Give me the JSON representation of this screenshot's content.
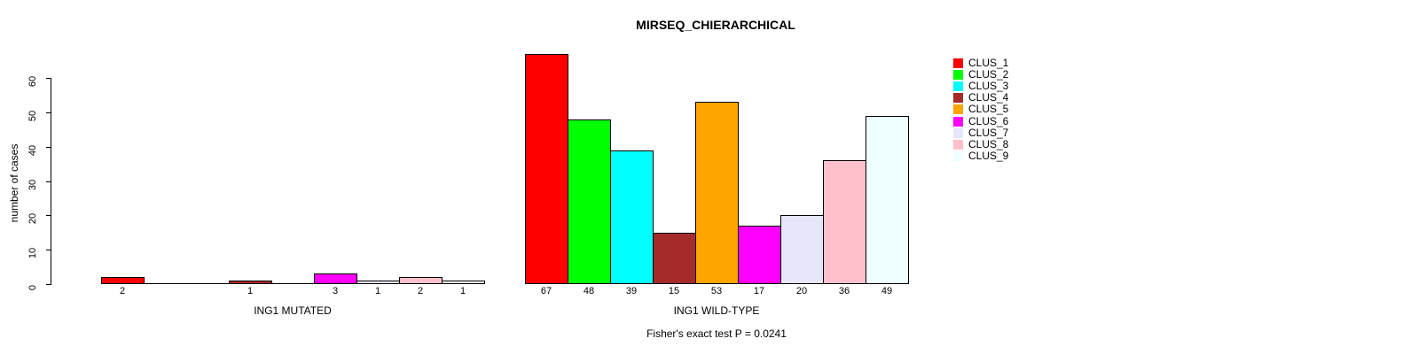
{
  "chart_data": {
    "type": "bar",
    "title": "MIRSEQ_CHIERARCHICAL",
    "ylabel": "number of cases",
    "xlabel": "",
    "ylim": [
      0,
      60
    ],
    "yticks": [
      0,
      10,
      20,
      30,
      40,
      50,
      60
    ],
    "grid": false,
    "legend_position": "top-right",
    "bar_border_color": "#000000",
    "clusters": [
      {
        "name": "CLUS_1",
        "color": "#FF0000"
      },
      {
        "name": "CLUS_2",
        "color": "#00FF00"
      },
      {
        "name": "CLUS_3",
        "color": "#00FFFF"
      },
      {
        "name": "CLUS_4",
        "color": "#A52A2A"
      },
      {
        "name": "CLUS_5",
        "color": "#FFA500"
      },
      {
        "name": "CLUS_6",
        "color": "#FF00FF"
      },
      {
        "name": "CLUS_7",
        "color": "#E6E6FA"
      },
      {
        "name": "CLUS_8",
        "color": "#FFC0CB"
      },
      {
        "name": "CLUS_9",
        "color": "#F0FFFF"
      }
    ],
    "groups": [
      {
        "label": "ING1 MUTATED",
        "values": [
          2,
          0,
          0,
          1,
          0,
          3,
          1,
          2,
          1
        ]
      },
      {
        "label": "ING1 WILD-TYPE",
        "values": [
          67,
          48,
          39,
          15,
          53,
          17,
          20,
          36,
          49
        ]
      }
    ],
    "zero_value_labels_hidden": true,
    "footnote": "Fisher's exact test P = 0.0241"
  }
}
